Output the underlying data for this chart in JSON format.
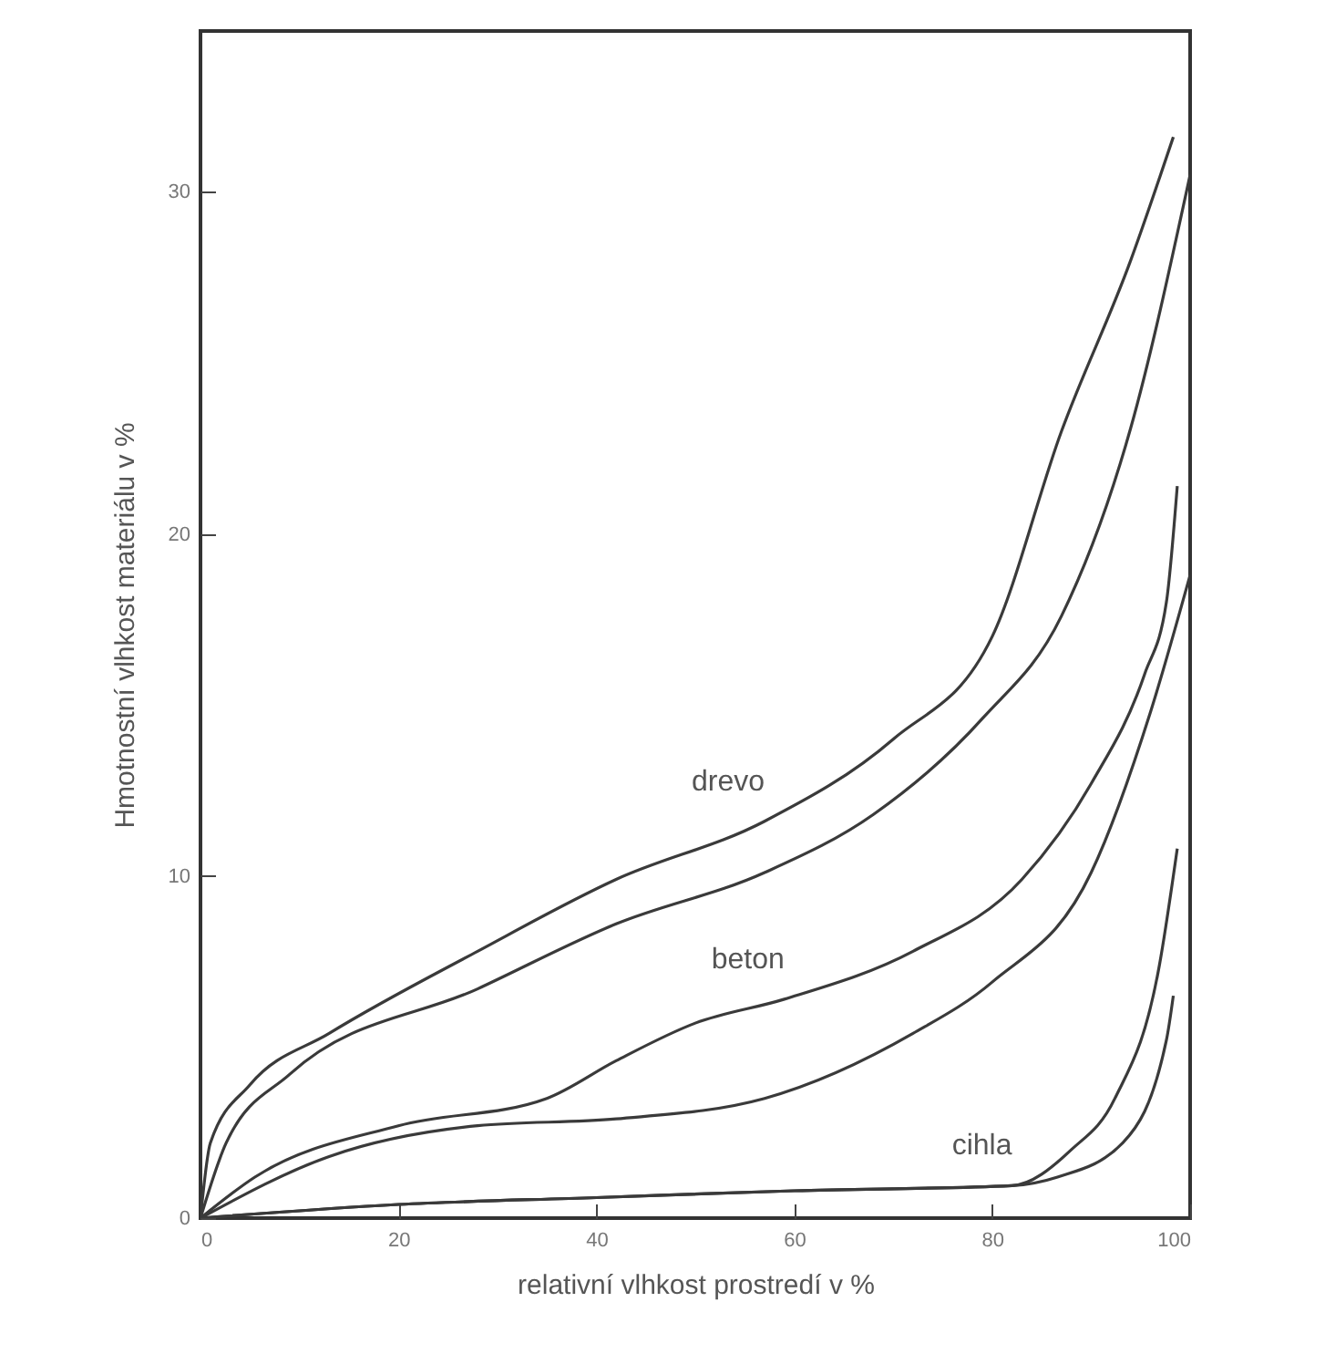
{
  "chart_data": {
    "type": "line",
    "xlabel": "relativní vlhkost prostredí v %",
    "ylabel": "Hmotnostní vlhkost materiálu v %",
    "xlim": [
      0,
      100
    ],
    "ylim": [
      0,
      34.7
    ],
    "xticks": [
      0,
      20,
      40,
      60,
      80,
      100
    ],
    "yticks": [
      0,
      10,
      20,
      30
    ],
    "grid": false,
    "marker": "none",
    "line_style": "solid",
    "series": [
      {
        "name": "drevo",
        "color": "#3a3a3a",
        "x": [
          0,
          1,
          5,
          13,
          28,
          42,
          57,
          70,
          80,
          87,
          94,
          98.3
        ],
        "values": [
          0,
          2.2,
          3.9,
          5.4,
          7.8,
          9.9,
          11.6,
          14.0,
          17.0,
          23.0,
          28.0,
          31.6
        ]
      },
      {
        "color": "#3a3a3a",
        "x": [
          0,
          2.6,
          9,
          28,
          42,
          57,
          68,
          79,
          87,
          94,
          100
        ],
        "values": [
          0,
          2.2,
          4.2,
          6.7,
          8.6,
          10.1,
          11.8,
          14.6,
          17.6,
          23.1,
          30.5
        ]
      },
      {
        "name": "beton",
        "color": "#3a3a3a",
        "x": [
          0,
          5.5,
          20,
          35,
          42,
          50,
          59,
          72,
          83,
          90,
          95.4,
          97.6,
          98.7
        ],
        "values": [
          0,
          1.2,
          2.7,
          3.5,
          4.6,
          5.7,
          6.4,
          7.8,
          9.9,
          12.7,
          15.9,
          18.0,
          21.4
        ]
      },
      {
        "color": "#3a3a3a",
        "x": [
          0,
          13,
          28,
          42,
          57,
          72,
          80,
          90,
          96,
          100
        ],
        "values": [
          0,
          1.8,
          2.7,
          2.9,
          3.5,
          5.4,
          6.9,
          10.1,
          14.8,
          18.8
        ]
      },
      {
        "name": "cihla",
        "color": "#3a3a3a",
        "x": [
          0,
          20,
          40,
          60,
          82,
          88,
          92.4,
          96.9,
          98.7
        ],
        "values": [
          0,
          0.4,
          0.6,
          0.8,
          0.95,
          2.0,
          3.5,
          7.4,
          10.8
        ]
      },
      {
        "color": "#3a3a3a",
        "x": [
          0,
          20,
          40,
          60,
          82,
          86.6,
          93.2,
          97.6,
          98.3
        ],
        "values": [
          0,
          0.4,
          0.6,
          0.8,
          0.95,
          1.2,
          2.2,
          5.2,
          6.5
        ]
      }
    ]
  }
}
